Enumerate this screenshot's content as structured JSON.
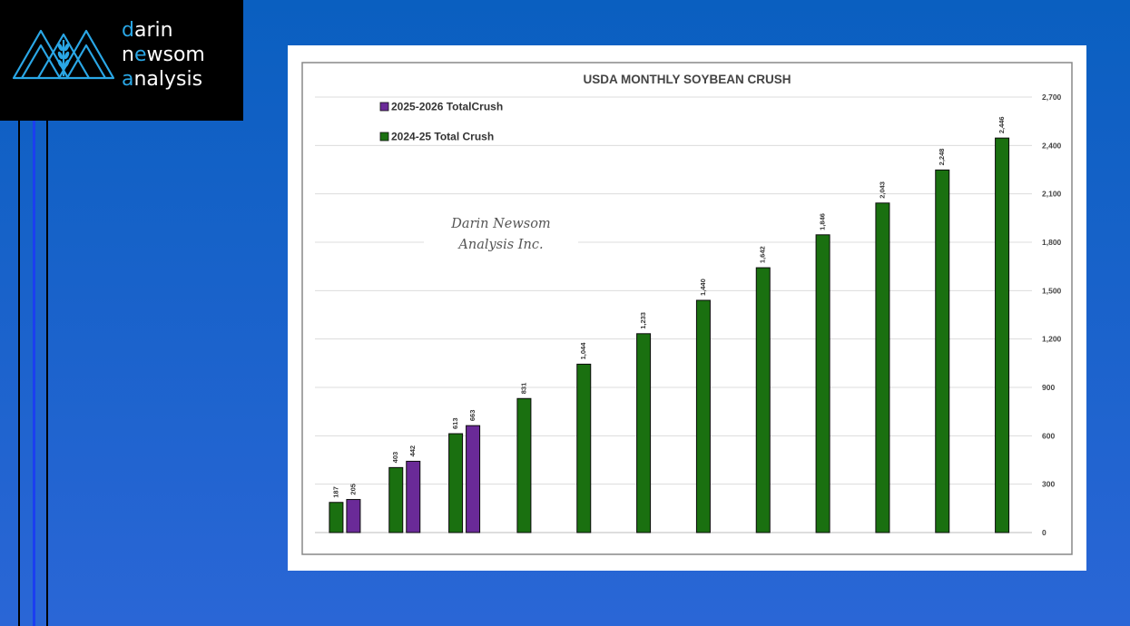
{
  "logo": {
    "line1_accent": "d",
    "line1_rest": "arin",
    "line2_a": "n",
    "line2_accent": "e",
    "line2_b": "w",
    "line2_rest": "som",
    "line3_accent": "a",
    "line3_rest": "nalysis",
    "accent_color": "#2aa7e6",
    "icon": "mountain-wheat-logo-icon"
  },
  "watermark": {
    "line1": "Darin Newsom",
    "line2": "Analysis Inc."
  },
  "chart_data": {
    "type": "bar",
    "title": "USDA MONTHLY SOYBEAN CRUSH",
    "xlabel": "",
    "ylabel": "",
    "ylim": [
      0,
      2700
    ],
    "yticks": [
      0,
      300,
      600,
      900,
      1200,
      1500,
      1800,
      2100,
      2400,
      2700
    ],
    "ytick_labels": [
      "0",
      "300",
      "600",
      "900",
      "1,200",
      "1,500",
      "1,800",
      "2,100",
      "2,400",
      "2,700"
    ],
    "grid": true,
    "legend_position": "top-left",
    "categories": [
      "",
      "",
      "",
      "",
      "",
      "",
      "",
      "",
      "",
      "",
      "",
      ""
    ],
    "series": [
      {
        "name": "2024-25 Total Crush",
        "color": "#1a7010",
        "values": [
          187,
          403,
          613,
          831,
          1044,
          1233,
          1440,
          1642,
          1846,
          2043,
          2248,
          2446
        ],
        "labels": [
          "187",
          "403",
          "613",
          "831",
          "1,044",
          "1,233",
          "1,440",
          "1,642",
          "1,846",
          "2,043",
          "2,248",
          "2,446"
        ]
      },
      {
        "name": "2025-2026 TotalCrush",
        "color": "#6a2a98",
        "values": [
          205,
          442,
          663,
          null,
          null,
          null,
          null,
          null,
          null,
          null,
          null,
          null
        ],
        "labels": [
          "205",
          "442",
          "663",
          "",
          "",
          "",
          "",
          "",
          "",
          "",
          "",
          ""
        ]
      }
    ]
  }
}
